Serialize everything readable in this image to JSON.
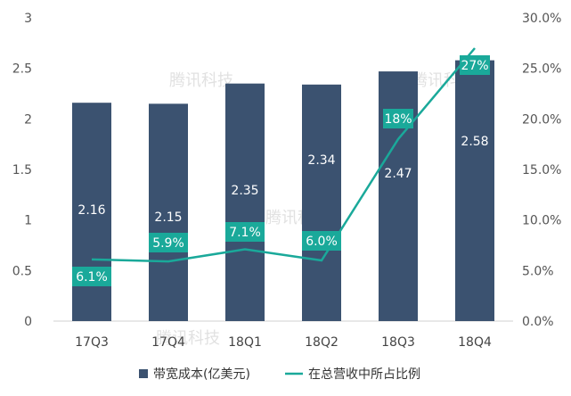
{
  "chart_data": {
    "type": "bar",
    "categories": [
      "17Q3",
      "17Q4",
      "18Q1",
      "18Q2",
      "18Q3",
      "18Q4"
    ],
    "series": [
      {
        "name": "带宽成本(亿美元)",
        "type": "bar",
        "axis": "left",
        "values": [
          2.16,
          2.15,
          2.35,
          2.34,
          2.47,
          2.58
        ],
        "labels": [
          "2.16",
          "2.15",
          "2.35",
          "2.34",
          "2.47",
          "2.58"
        ],
        "color": "#3b5270"
      },
      {
        "name": "在总营收中所占比例",
        "type": "line",
        "axis": "right",
        "values": [
          6.1,
          5.9,
          7.1,
          6.0,
          18,
          27
        ],
        "labels": [
          "6.1%",
          "5.9%",
          "7.1%",
          "6.0%",
          "18%",
          "27%"
        ],
        "color": "#1aa99a"
      }
    ],
    "left_axis": {
      "ticks": [
        "0",
        "0.5",
        "1",
        "1.5",
        "2",
        "2.5",
        "3"
      ],
      "ylim": [
        0,
        3
      ]
    },
    "right_axis": {
      "ticks": [
        "0.0%",
        "5.0%",
        "10.0%",
        "15.0%",
        "20.0%",
        "25.0%",
        "30.0%"
      ],
      "ylim": [
        0,
        30
      ]
    },
    "grid": false,
    "legend_position": "bottom",
    "watermark": "腾讯科技"
  }
}
